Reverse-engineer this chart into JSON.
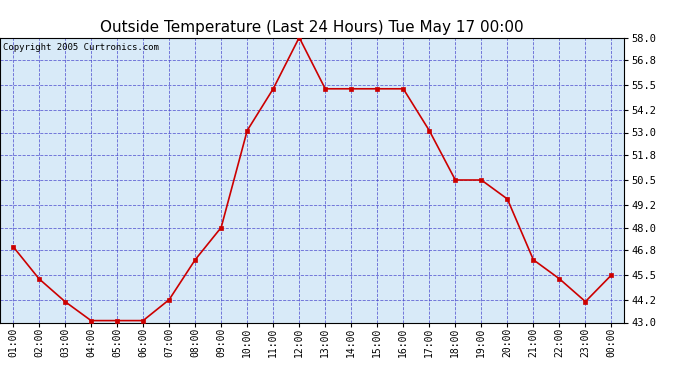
{
  "title": "Outside Temperature (Last 24 Hours) Tue May 17 00:00",
  "copyright": "Copyright 2005 Curtronics.com",
  "x_labels": [
    "01:00",
    "02:00",
    "03:00",
    "04:00",
    "05:00",
    "06:00",
    "07:00",
    "08:00",
    "09:00",
    "10:00",
    "11:00",
    "12:00",
    "13:00",
    "14:00",
    "15:00",
    "16:00",
    "17:00",
    "18:00",
    "19:00",
    "20:00",
    "21:00",
    "22:00",
    "23:00",
    "00:00"
  ],
  "y_values": [
    47.0,
    45.3,
    44.1,
    43.1,
    43.1,
    43.1,
    44.2,
    46.3,
    48.0,
    53.1,
    55.3,
    58.0,
    55.3,
    55.3,
    55.3,
    55.3,
    53.1,
    50.5,
    50.5,
    49.5,
    46.3,
    45.3,
    44.1,
    45.5
  ],
  "ylim": [
    43.0,
    58.0
  ],
  "yticks": [
    43.0,
    44.2,
    45.5,
    46.8,
    48.0,
    49.2,
    50.5,
    51.8,
    53.0,
    54.2,
    55.5,
    56.8,
    58.0
  ],
  "line_color": "#cc0000",
  "marker_color": "#cc0000",
  "bg_color": "#d8eaf8",
  "fig_bg_color": "#ffffff",
  "grid_color": "#4444cc",
  "title_fontsize": 11,
  "copyright_fontsize": 6.5,
  "tick_fontsize": 7,
  "ytick_fontsize": 7.5
}
